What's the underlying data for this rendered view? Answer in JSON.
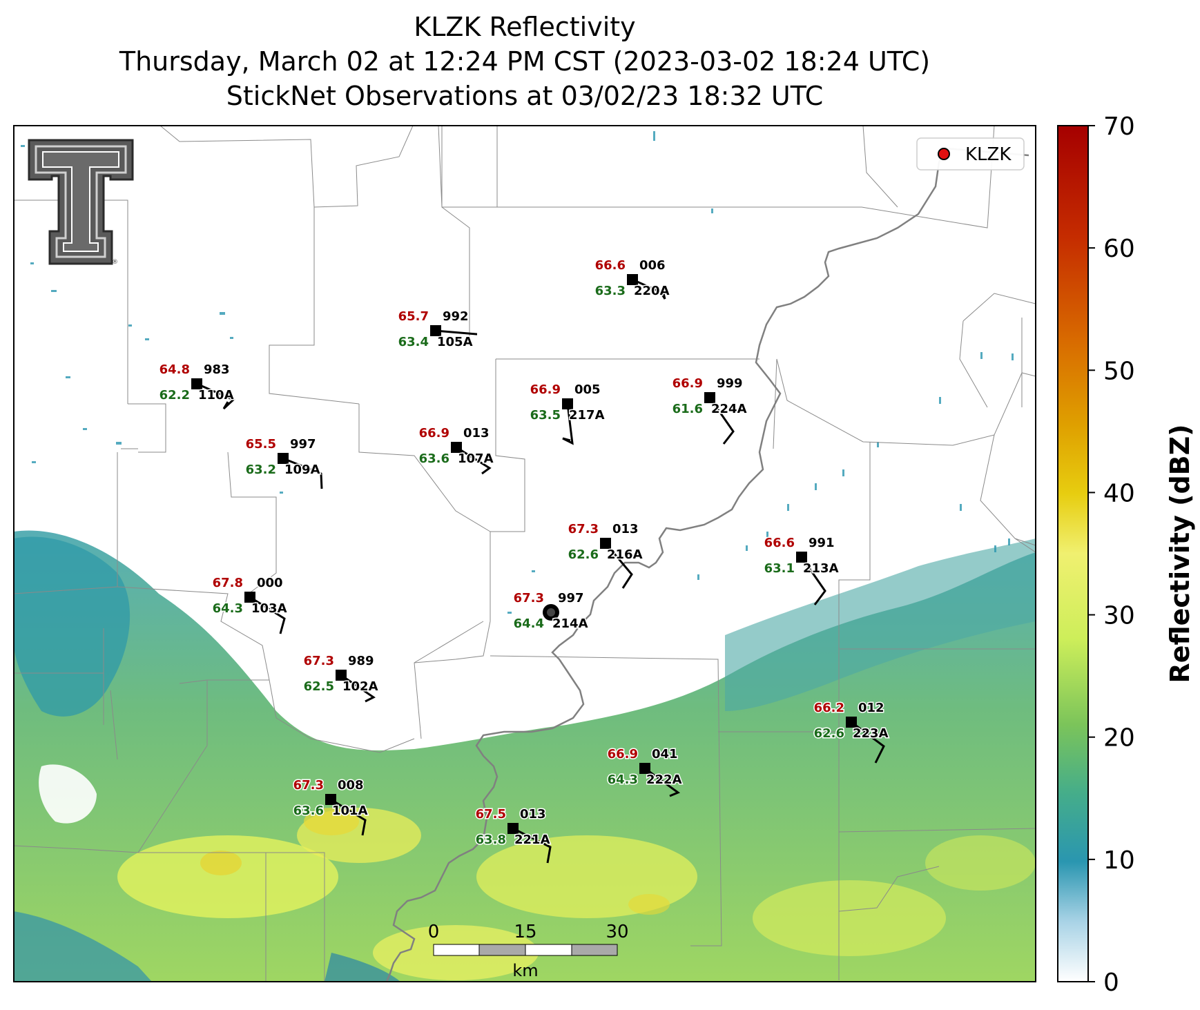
{
  "title": {
    "line1": "KLZK Reflectivity",
    "line2": "Thursday, March 02 at 12:24 PM CST (2023-03-02 18:24 UTC)",
    "line3": "StickNet Observations at 03/02/23 18:32 UTC"
  },
  "legend": {
    "label": "KLZK",
    "marker_color": "#e01010"
  },
  "colorbar": {
    "label": "Reflectivity (dBZ)",
    "ticks": [
      "0",
      "10",
      "20",
      "30",
      "40",
      "50",
      "60",
      "70"
    ],
    "range": [
      0,
      70
    ],
    "colors": [
      "#ffffff",
      "#2a96b0",
      "#57b365",
      "#e6f55a",
      "#e3c000",
      "#d86400",
      "#a80000"
    ]
  },
  "scale_bar": {
    "ticks": [
      "0",
      "15",
      "30"
    ],
    "unit": "km"
  },
  "logo": {
    "name": "Texas Tech Double T"
  },
  "stations": [
    {
      "id": "220A",
      "temp": "66.6",
      "dew": "63.3",
      "pres": "006"
    },
    {
      "id": "105A",
      "temp": "65.7",
      "dew": "63.4",
      "pres": "992"
    },
    {
      "id": "110A",
      "temp": "64.8",
      "dew": "62.2",
      "pres": "983"
    },
    {
      "id": "217A",
      "temp": "66.9",
      "dew": "63.5",
      "pres": "005"
    },
    {
      "id": "224A",
      "temp": "66.9",
      "dew": "61.6",
      "pres": "999"
    },
    {
      "id": "107A",
      "temp": "66.9",
      "dew": "63.6",
      "pres": "013"
    },
    {
      "id": "109A",
      "temp": "65.5",
      "dew": "63.2",
      "pres": "997"
    },
    {
      "id": "216A",
      "temp": "67.3",
      "dew": "62.6",
      "pres": "013"
    },
    {
      "id": "213A",
      "temp": "66.6",
      "dew": "63.1",
      "pres": "991"
    },
    {
      "id": "103A",
      "temp": "67.8",
      "dew": "64.3",
      "pres": "000"
    },
    {
      "id": "214A",
      "temp": "67.3",
      "dew": "64.4",
      "pres": "997"
    },
    {
      "id": "102A",
      "temp": "67.3",
      "dew": "62.5",
      "pres": "989"
    },
    {
      "id": "223A",
      "temp": "66.2",
      "dew": "62.6",
      "pres": "012"
    },
    {
      "id": "222A",
      "temp": "66.9",
      "dew": "64.3",
      "pres": "041"
    },
    {
      "id": "101A",
      "temp": "67.3",
      "dew": "63.6",
      "pres": "008"
    },
    {
      "id": "221A",
      "temp": "67.5",
      "dew": "63.8",
      "pres": "013"
    }
  ]
}
